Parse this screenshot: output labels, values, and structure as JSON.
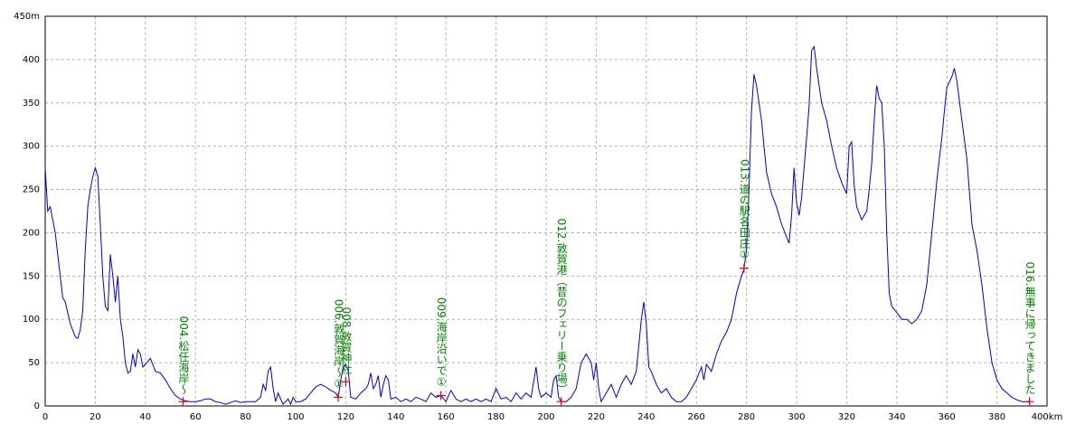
{
  "chart_data": {
    "type": "line",
    "color": "#0000cc",
    "marker_color": "#e00000",
    "annotation_color": "#008000",
    "grid": true,
    "xlim": [
      0,
      400
    ],
    "ylim": [
      0,
      450
    ],
    "xticks": [
      0,
      20,
      40,
      60,
      80,
      100,
      120,
      140,
      160,
      180,
      200,
      220,
      240,
      260,
      280,
      300,
      320,
      340,
      360,
      380,
      {
        "value": 400,
        "label": "400km"
      }
    ],
    "yticks": [
      0,
      50,
      100,
      150,
      200,
      250,
      300,
      350,
      400,
      {
        "value": 450,
        "label": "450m"
      }
    ],
    "x": [
      0,
      1,
      2,
      4,
      6,
      7,
      8,
      10,
      12,
      13,
      14,
      15,
      16,
      17,
      18,
      19,
      20,
      21,
      22,
      23,
      24,
      25,
      26,
      27,
      28,
      29,
      30,
      31,
      32,
      33,
      34,
      35,
      36,
      37,
      38,
      39,
      40,
      42,
      44,
      46,
      48,
      50,
      52,
      54,
      56,
      58,
      60,
      62,
      64,
      66,
      68,
      70,
      72,
      74,
      76,
      78,
      80,
      82,
      84,
      86,
      87,
      88,
      89,
      90,
      91,
      92,
      93,
      94,
      95,
      96,
      97,
      98,
      99,
      100,
      102,
      104,
      106,
      108,
      110,
      112,
      114,
      116,
      117,
      118,
      119,
      120,
      121,
      122,
      124,
      126,
      128,
      129,
      130,
      131,
      132,
      133,
      134,
      135,
      136,
      137,
      138,
      140,
      142,
      144,
      146,
      148,
      150,
      152,
      154,
      156,
      158,
      160,
      162,
      164,
      166,
      168,
      170,
      172,
      174,
      176,
      178,
      180,
      182,
      184,
      186,
      188,
      190,
      192,
      194,
      196,
      197,
      198,
      200,
      202,
      203,
      204,
      205,
      206,
      208,
      210,
      212,
      214,
      216,
      218,
      219,
      220,
      221,
      222,
      224,
      226,
      228,
      230,
      232,
      234,
      236,
      237,
      238,
      239,
      240,
      241,
      242,
      244,
      246,
      248,
      250,
      252,
      254,
      256,
      258,
      260,
      262,
      263,
      264,
      266,
      268,
      270,
      272,
      274,
      276,
      278,
      279,
      280,
      281,
      282,
      283,
      284,
      286,
      288,
      290,
      292,
      294,
      296,
      297,
      298,
      299,
      300,
      301,
      302,
      304,
      305,
      306,
      307,
      308,
      310,
      312,
      314,
      316,
      318,
      320,
      321,
      322,
      323,
      324,
      326,
      328,
      329,
      330,
      331,
      332,
      333,
      334,
      335,
      336,
      337,
      338,
      340,
      342,
      344,
      346,
      348,
      350,
      352,
      354,
      356,
      358,
      359,
      360,
      362,
      363,
      364,
      366,
      368,
      370,
      372,
      374,
      376,
      378,
      380,
      382,
      384,
      386,
      388,
      390,
      392,
      393
    ],
    "values": [
      275,
      225,
      230,
      200,
      150,
      125,
      120,
      95,
      80,
      78,
      88,
      110,
      180,
      230,
      250,
      265,
      275,
      265,
      210,
      150,
      115,
      110,
      175,
      150,
      120,
      150,
      100,
      80,
      50,
      38,
      40,
      60,
      45,
      65,
      60,
      45,
      48,
      55,
      40,
      38,
      30,
      20,
      12,
      8,
      6,
      5,
      5,
      6,
      8,
      8,
      5,
      4,
      2,
      4,
      6,
      4,
      5,
      5,
      5,
      10,
      25,
      18,
      40,
      45,
      20,
      5,
      15,
      8,
      2,
      5,
      8,
      2,
      10,
      5,
      5,
      8,
      15,
      22,
      25,
      22,
      18,
      15,
      10,
      30,
      45,
      48,
      40,
      10,
      8,
      15,
      20,
      25,
      38,
      20,
      25,
      35,
      10,
      25,
      35,
      30,
      8,
      10,
      5,
      8,
      5,
      10,
      8,
      5,
      15,
      10,
      12,
      5,
      18,
      8,
      5,
      8,
      5,
      8,
      5,
      8,
      5,
      20,
      8,
      10,
      5,
      15,
      8,
      15,
      10,
      45,
      20,
      10,
      15,
      10,
      30,
      35,
      10,
      5,
      5,
      10,
      20,
      50,
      60,
      50,
      30,
      50,
      20,
      5,
      15,
      25,
      10,
      25,
      35,
      25,
      40,
      70,
      100,
      120,
      95,
      45,
      40,
      25,
      15,
      20,
      10,
      5,
      5,
      10,
      20,
      30,
      45,
      30,
      48,
      40,
      60,
      75,
      85,
      100,
      130,
      150,
      158,
      180,
      250,
      340,
      383,
      370,
      330,
      270,
      245,
      230,
      210,
      195,
      188,
      220,
      275,
      235,
      220,
      240,
      310,
      345,
      410,
      415,
      390,
      350,
      330,
      300,
      275,
      258,
      245,
      300,
      305,
      255,
      230,
      215,
      225,
      250,
      280,
      330,
      370,
      355,
      350,
      300,
      200,
      130,
      115,
      108,
      100,
      100,
      95,
      100,
      110,
      140,
      200,
      260,
      310,
      340,
      368,
      380,
      390,
      375,
      330,
      285,
      210,
      180,
      140,
      90,
      50,
      30,
      20,
      15,
      10,
      7,
      5,
      5,
      4
    ],
    "annotations": [
      {
        "text": "004.松任海岸～",
        "x": 55,
        "y": 5
      },
      {
        "text": "006.敦賀海岸～①",
        "x": 117,
        "y": 10
      },
      {
        "text": "008.敦賀神社",
        "x": 120,
        "y": 28
      },
      {
        "text": "009.海岸沿いで①",
        "x": 158,
        "y": 12
      },
      {
        "text": "012.敦賀港（昔のフェリー乗り場）",
        "x": 206,
        "y": 5
      },
      {
        "text": "013.道の駅名田庄①",
        "x": 279,
        "y": 159
      },
      {
        "text": "016.無事に帰ってきました",
        "x": 393,
        "y": 5
      }
    ]
  }
}
